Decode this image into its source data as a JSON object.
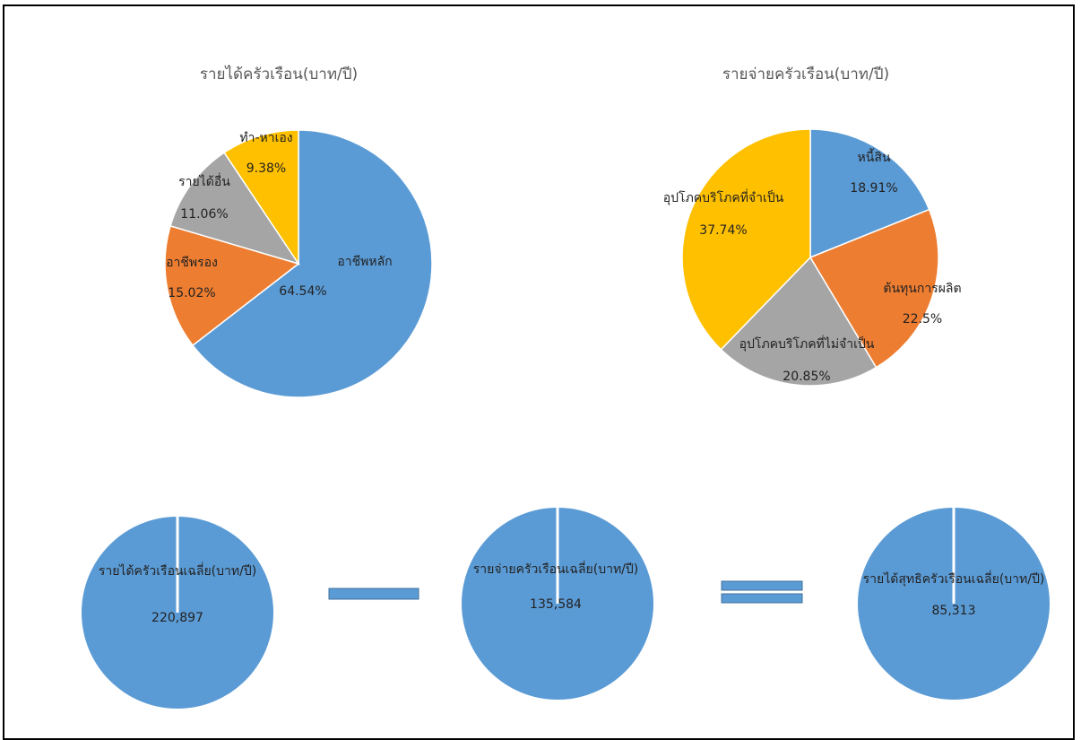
{
  "chart_data": [
    {
      "type": "pie",
      "title": "รายได้ครัวเรือน(บาท/ปี)",
      "slices": [
        {
          "label": "อาชีพหลัก",
          "value": 64.54,
          "display": "64.54%",
          "color": "#5B9BD5"
        },
        {
          "label": "อาชีพรอง",
          "value": 15.02,
          "display": "15.02%",
          "color": "#ED7D31"
        },
        {
          "label": "รายได้อื่น",
          "value": 11.06,
          "display": "11.06%",
          "color": "#A5A5A5"
        },
        {
          "label": "ทำ-หาเอง",
          "value": 9.38,
          "display": "9.38%",
          "color": "#FFC000"
        }
      ]
    },
    {
      "type": "pie",
      "title": "รายจ่ายครัวเรือน(บาท/ปี)",
      "slices": [
        {
          "label": "หนี้สิน",
          "value": 18.91,
          "display": "18.91%",
          "color": "#5B9BD5"
        },
        {
          "label": "ต้นทุนการผลิต",
          "value": 22.5,
          "display": "22.5%",
          "color": "#ED7D31"
        },
        {
          "label": "อุปโภคบริโภคที่ไม่จำเป็น",
          "value": 20.85,
          "display": "20.85%",
          "color": "#A5A5A5"
        },
        {
          "label": "อุปโภคบริโภคที่จำเป็น",
          "value": 37.74,
          "display": "37.74%",
          "color": "#FFC000"
        }
      ]
    },
    {
      "type": "pie",
      "slices": [
        {
          "label": "รายได้ครัวเรือนเฉลี่ย(บาท/ปี)",
          "value": 220897,
          "display": "220,897",
          "color": "#5B9BD5"
        }
      ]
    },
    {
      "type": "pie",
      "slices": [
        {
          "label": "รายจ่ายครัวเรือนเฉลี่ย(บาท/ปี)",
          "value": 135584,
          "display": "135,584",
          "color": "#5B9BD5"
        }
      ]
    },
    {
      "type": "pie",
      "slices": [
        {
          "label": "รายได้สุทธิครัวเรือนเฉลี่ย(บาท/ปี)",
          "value": 85313,
          "display": "85,313",
          "color": "#5B9BD5"
        }
      ]
    }
  ],
  "operators": {
    "minus": {
      "symbol": "minus",
      "color": "#5B9BD5"
    },
    "equals": {
      "symbol": "equals",
      "color": "#5B9BD5"
    }
  }
}
